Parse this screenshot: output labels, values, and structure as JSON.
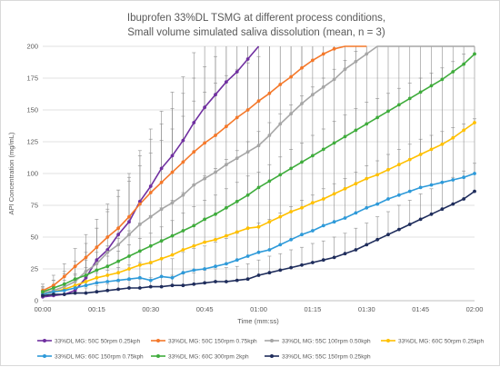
{
  "chart_data": {
    "type": "line",
    "title": [
      "Ibuprofen 33%DL TSMG at different process conditions,",
      "Small volume simulated saliva dissolution (mean, n = 3)"
    ],
    "xlabel": "Time (mm:ss)",
    "ylabel": "API Concentration (mg/mL)",
    "ylim": [
      0,
      200
    ],
    "yticks": [
      "0",
      "25",
      "50",
      "75",
      "100",
      "125",
      "150",
      "175",
      "200"
    ],
    "xlim": [
      0,
      120
    ],
    "xticks": [
      {
        "t": 0,
        "label": "00:00"
      },
      {
        "t": 15,
        "label": "00:15"
      },
      {
        "t": 30,
        "label": "00:30"
      },
      {
        "t": 45,
        "label": "00:45"
      },
      {
        "t": 60,
        "label": "01:00"
      },
      {
        "t": 75,
        "label": "01:15"
      },
      {
        "t": 90,
        "label": "01:30"
      },
      {
        "t": 105,
        "label": "01:45"
      },
      {
        "t": 120,
        "label": "02:00"
      }
    ],
    "x_unit": "seconds",
    "grid": "horizontal",
    "legend_position": "bottom",
    "series": [
      {
        "name": "33%DL MG: 50C 50rpm 0.25kph",
        "color": "#7030a0",
        "x": [
          0,
          3,
          6,
          9,
          12,
          15,
          18,
          21,
          24,
          27,
          30,
          33,
          36,
          39,
          42,
          45,
          48,
          51,
          54,
          57,
          60
        ],
        "y": [
          3,
          4,
          5,
          8,
          18,
          32,
          40,
          52,
          62,
          78,
          90,
          104,
          114,
          126,
          140,
          152,
          162,
          172,
          180,
          190,
          200
        ],
        "err": [
          3,
          3,
          3,
          12,
          20,
          25,
          30,
          35,
          35,
          40,
          45,
          45,
          50,
          50,
          55,
          55,
          55,
          50,
          50,
          45,
          40
        ]
      },
      {
        "name": "33%DL MG: 50C 150rpm 0.75kph",
        "color": "#f4782a",
        "x": [
          0,
          3,
          6,
          9,
          12,
          15,
          18,
          21,
          24,
          27,
          30,
          33,
          36,
          39,
          42,
          45,
          48,
          51,
          54,
          57,
          60,
          63,
          66,
          69,
          72,
          75,
          78,
          81,
          84,
          87,
          90
        ],
        "y": [
          8,
          12,
          19,
          27,
          34,
          42,
          50,
          57,
          66,
          76,
          85,
          93,
          101,
          109,
          117,
          124,
          130,
          137,
          144,
          150,
          157,
          163,
          170,
          176,
          183,
          189,
          194,
          198,
          200,
          200,
          200
        ],
        "err": [
          5,
          8,
          10,
          14,
          18,
          22,
          26,
          30,
          34,
          38,
          42,
          46,
          50,
          54,
          58,
          60,
          62,
          64,
          66,
          68,
          70,
          70,
          70,
          70,
          70,
          70,
          70,
          70,
          70,
          70,
          70
        ]
      },
      {
        "name": "33%DL MG: 55C 100rpm 0.50kph",
        "color": "#a6a6a6",
        "x": [
          0,
          3,
          6,
          9,
          12,
          15,
          18,
          21,
          24,
          27,
          30,
          33,
          36,
          39,
          42,
          45,
          48,
          51,
          54,
          57,
          60,
          63,
          66,
          69,
          72,
          75,
          78,
          81,
          84,
          87,
          90,
          93,
          96,
          99,
          102,
          105,
          108,
          111,
          114,
          117,
          120
        ],
        "y": [
          6,
          8,
          11,
          15,
          23,
          29,
          38,
          44,
          52,
          60,
          66,
          72,
          77,
          83,
          91,
          96,
          101,
          107,
          112,
          117,
          122,
          130,
          139,
          147,
          155,
          162,
          168,
          174,
          182,
          188,
          194,
          200,
          200,
          200,
          200,
          200,
          200,
          200,
          200,
          200,
          200
        ],
        "err": [
          4,
          8,
          12,
          16,
          22,
          28,
          34,
          38,
          42,
          46,
          50,
          54,
          58,
          62,
          66,
          68,
          70,
          70,
          70,
          70,
          70,
          70,
          70,
          70,
          70,
          70,
          70,
          70,
          70,
          70,
          70,
          70,
          70,
          70,
          70,
          70,
          70,
          70,
          70,
          70,
          70
        ]
      },
      {
        "name": "33%DL MG: 60C 50rpm 0.25kph",
        "color": "#ffc000",
        "x": [
          0,
          3,
          6,
          9,
          12,
          15,
          18,
          21,
          24,
          27,
          30,
          33,
          36,
          39,
          42,
          45,
          48,
          51,
          54,
          57,
          60,
          63,
          66,
          69,
          72,
          75,
          78,
          81,
          84,
          87,
          90,
          93,
          96,
          99,
          102,
          105,
          108,
          111,
          114,
          117,
          120
        ],
        "y": [
          5,
          7,
          9,
          12,
          15,
          18,
          20,
          22,
          25,
          28,
          30,
          33,
          36,
          40,
          43,
          46,
          48,
          51,
          54,
          57,
          58,
          62,
          66,
          70,
          73,
          77,
          80,
          84,
          88,
          92,
          96,
          99,
          103,
          107,
          111,
          115,
          119,
          123,
          128,
          134,
          140
        ],
        "err": [
          3,
          5,
          7,
          9,
          11,
          13,
          15,
          17,
          19,
          21,
          23,
          25,
          27,
          29,
          31,
          33,
          35,
          37,
          39,
          41,
          43,
          45,
          47,
          49,
          51,
          53,
          55,
          57,
          58,
          59,
          60,
          60,
          60,
          60,
          60,
          60,
          60,
          60,
          60,
          60,
          60
        ]
      },
      {
        "name": "33%DL MG: 60C 150rpm 0.75kph",
        "color": "#2e9ad9",
        "x": [
          0,
          3,
          6,
          9,
          12,
          15,
          18,
          21,
          24,
          27,
          30,
          33,
          36,
          39,
          42,
          45,
          48,
          51,
          54,
          57,
          60,
          63,
          66,
          69,
          72,
          75,
          78,
          81,
          84,
          87,
          90,
          93,
          96,
          99,
          102,
          105,
          108,
          111,
          114,
          117,
          120
        ],
        "y": [
          5,
          7,
          8,
          10,
          12,
          14,
          15,
          16,
          17,
          18,
          16,
          19,
          18,
          22,
          24,
          25,
          27,
          29,
          32,
          35,
          38,
          40,
          44,
          48,
          52,
          55,
          59,
          62,
          65,
          69,
          73,
          76,
          80,
          83,
          86,
          89,
          91,
          93,
          95,
          97,
          100
        ],
        "err": [
          3,
          4,
          5,
          6,
          7,
          8,
          9,
          10,
          11,
          12,
          13,
          14,
          15,
          16,
          17,
          18,
          19,
          20,
          21,
          22,
          23,
          24,
          25,
          26,
          27,
          28,
          29,
          30,
          31,
          32,
          33,
          34,
          35,
          36,
          37,
          38,
          39,
          40,
          41,
          42,
          43
        ]
      },
      {
        "name": "33%DL MG: 60C 300rpm 2kph",
        "color": "#3fac3c",
        "x": [
          0,
          3,
          6,
          9,
          12,
          15,
          18,
          21,
          24,
          27,
          30,
          33,
          36,
          39,
          42,
          45,
          48,
          51,
          54,
          57,
          60,
          63,
          66,
          69,
          72,
          75,
          78,
          81,
          84,
          87,
          90,
          93,
          96,
          99,
          102,
          105,
          108,
          111,
          114,
          117,
          120
        ],
        "y": [
          7,
          10,
          13,
          17,
          20,
          24,
          27,
          31,
          35,
          39,
          43,
          47,
          51,
          55,
          59,
          64,
          68,
          73,
          78,
          83,
          89,
          94,
          99,
          104,
          109,
          114,
          119,
          124,
          129,
          134,
          139,
          144,
          149,
          154,
          159,
          164,
          169,
          174,
          180,
          186,
          194
        ],
        "err": [
          4,
          6,
          8,
          10,
          12,
          14,
          16,
          18,
          20,
          22,
          24,
          26,
          28,
          30,
          32,
          34,
          36,
          38,
          40,
          42,
          44,
          46,
          48,
          50,
          52,
          54,
          56,
          58,
          60,
          62,
          64,
          64,
          64,
          64,
          64,
          64,
          64,
          64,
          64,
          64,
          64
        ]
      },
      {
        "name": "33%DL MG: 55C 150rpm 0.25kph",
        "color": "#1f2d5c",
        "x": [
          0,
          3,
          6,
          9,
          12,
          15,
          18,
          21,
          24,
          27,
          30,
          33,
          36,
          39,
          42,
          45,
          48,
          51,
          54,
          57,
          60,
          63,
          66,
          69,
          72,
          75,
          78,
          81,
          84,
          87,
          90,
          93,
          96,
          99,
          102,
          105,
          108,
          111,
          114,
          117,
          120
        ],
        "y": [
          4,
          5,
          5,
          6,
          6,
          7,
          8,
          9,
          10,
          10,
          11,
          11,
          12,
          12,
          13,
          14,
          15,
          15,
          16,
          17,
          20,
          22,
          24,
          26,
          28,
          30,
          32,
          34,
          37,
          40,
          44,
          48,
          52,
          56,
          60,
          64,
          68,
          72,
          76,
          80,
          86
        ],
        "err": [
          2,
          3,
          3,
          4,
          4,
          5,
          5,
          6,
          6,
          7,
          7,
          8,
          8,
          9,
          9,
          10,
          10,
          11,
          11,
          12,
          12,
          13,
          13,
          14,
          14,
          15,
          15,
          16,
          16,
          17,
          17,
          18,
          18,
          19,
          19,
          20,
          20,
          21,
          21,
          22,
          22
        ]
      }
    ]
  }
}
